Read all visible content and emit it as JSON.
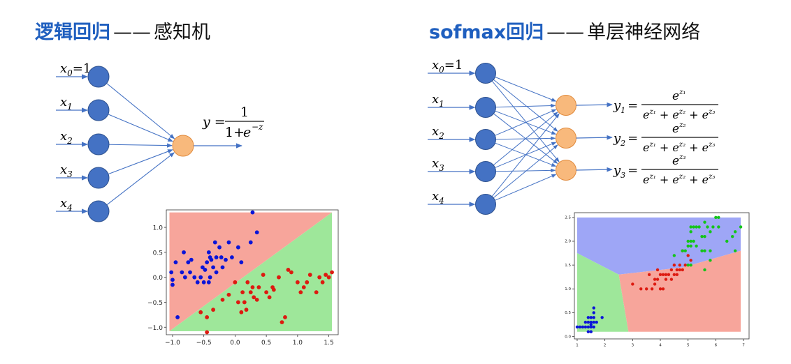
{
  "titles": {
    "left": {
      "highlight": "逻辑回归",
      "dash": "——",
      "rest": "感知机"
    },
    "right": {
      "highlight": "sofmax回归",
      "dash": "——",
      "rest": "单层神经网络"
    }
  },
  "left_network": {
    "inputs": [
      {
        "base": "x",
        "sub": "0",
        "suffix": "=1"
      },
      {
        "base": "x",
        "sub": "1",
        "suffix": ""
      },
      {
        "base": "x",
        "sub": "2",
        "suffix": ""
      },
      {
        "base": "x",
        "sub": "3",
        "suffix": ""
      },
      {
        "base": "x",
        "sub": "4",
        "suffix": ""
      }
    ],
    "formula": {
      "lhs": "y =",
      "num": "1",
      "den_a": "1+",
      "den_b": "e",
      "den_exp": "−z"
    }
  },
  "right_network": {
    "inputs": [
      {
        "base": "x",
        "sub": "0",
        "suffix": "=1"
      },
      {
        "base": "x",
        "sub": "1",
        "suffix": ""
      },
      {
        "base": "x",
        "sub": "2",
        "suffix": ""
      },
      {
        "base": "x",
        "sub": "3",
        "suffix": ""
      },
      {
        "base": "x",
        "sub": "4",
        "suffix": ""
      }
    ],
    "outputs": [
      {
        "y": "y",
        "ysub": "1",
        "num_exp": "z₁",
        "den": "e^{z₁} + e^{z₂} + e^{z₃}"
      },
      {
        "y": "y",
        "ysub": "2",
        "num_exp": "z₂",
        "den": "e^{z₁} + e^{z₂} + e^{z₃}"
      },
      {
        "y": "y",
        "ysub": "3",
        "num_exp": "z₃",
        "den": "e^{z₁} + e^{z₂} + e^{z₃}"
      }
    ]
  },
  "colors": {
    "node_blue": "#4472c4",
    "node_orange": "#f8b97c",
    "edge": "#4472c4",
    "region_red": "#f7a59b",
    "region_green": "#9ee79a",
    "region_blue": "#9ea6f6",
    "pt_blue": "#0a14d8",
    "pt_red": "#dd1a10",
    "pt_green": "#14c41a"
  },
  "chart_data": [
    {
      "type": "scatter",
      "xlim": [
        -1.1,
        1.65
      ],
      "ylim": [
        -1.15,
        1.35
      ],
      "xticks": [
        "−1.0",
        "−0.5",
        "0.0",
        "0.5",
        "1.0",
        "1.5"
      ],
      "xtick_values": [
        -1.0,
        -0.5,
        0.0,
        0.5,
        1.0,
        1.5
      ],
      "yticks": [
        "1.0",
        "0.5",
        "0.0",
        "−0.5",
        "−1.0"
      ],
      "ytick_values": [
        1.0,
        0.5,
        0.0,
        -0.5,
        -1.0
      ],
      "regions": [
        {
          "color": "red",
          "polygon": [
            [
              -1.05,
              -1.08
            ],
            [
              -1.05,
              1.3
            ],
            [
              1.55,
              1.3
            ]
          ]
        },
        {
          "color": "green",
          "polygon": [
            [
              -1.05,
              -1.08
            ],
            [
              1.55,
              1.3
            ],
            [
              1.55,
              -1.08
            ]
          ]
        }
      ],
      "series": [
        {
          "color": "blue",
          "points": [
            [
              -1.02,
              0.1
            ],
            [
              -1.0,
              -0.05
            ],
            [
              -1.0,
              -0.15
            ],
            [
              -0.95,
              0.3
            ],
            [
              -0.92,
              -0.8
            ],
            [
              -0.85,
              0.1
            ],
            [
              -0.82,
              0.5
            ],
            [
              -0.8,
              0.0
            ],
            [
              -0.75,
              0.3
            ],
            [
              -0.72,
              0.1
            ],
            [
              -0.7,
              0.35
            ],
            [
              -0.65,
              0.0
            ],
            [
              -0.6,
              -0.1
            ],
            [
              -0.55,
              0.0
            ],
            [
              -0.52,
              0.2
            ],
            [
              -0.5,
              -0.1
            ],
            [
              -0.48,
              0.15
            ],
            [
              -0.45,
              0.3
            ],
            [
              -0.42,
              -0.1
            ],
            [
              -0.4,
              0.0
            ],
            [
              -0.42,
              0.5
            ],
            [
              -0.4,
              0.4
            ],
            [
              -0.38,
              0.35
            ],
            [
              -0.35,
              0.2
            ],
            [
              -0.32,
              0.7
            ],
            [
              -0.3,
              0.4
            ],
            [
              -0.3,
              0.1
            ],
            [
              -0.25,
              0.6
            ],
            [
              -0.22,
              0.4
            ],
            [
              -0.2,
              0.2
            ],
            [
              -0.15,
              0.35
            ],
            [
              -0.1,
              0.7
            ],
            [
              -0.05,
              0.4
            ],
            [
              0.05,
              0.6
            ],
            [
              0.1,
              0.3
            ],
            [
              0.25,
              0.7
            ],
            [
              0.28,
              1.3
            ],
            [
              0.35,
              0.9
            ]
          ]
        },
        {
          "color": "red",
          "points": [
            [
              -0.55,
              -0.7
            ],
            [
              -0.45,
              -0.8
            ],
            [
              -0.45,
              -1.1
            ],
            [
              -0.35,
              -0.65
            ],
            [
              -0.2,
              -0.45
            ],
            [
              -0.1,
              -0.35
            ],
            [
              0.0,
              -0.1
            ],
            [
              0.05,
              -0.5
            ],
            [
              0.1,
              -0.7
            ],
            [
              0.12,
              -0.3
            ],
            [
              0.15,
              -0.5
            ],
            [
              0.18,
              -0.65
            ],
            [
              0.2,
              -0.1
            ],
            [
              0.25,
              -0.3
            ],
            [
              0.28,
              -0.2
            ],
            [
              0.3,
              -0.4
            ],
            [
              0.35,
              -0.45
            ],
            [
              0.38,
              -0.2
            ],
            [
              0.45,
              0.05
            ],
            [
              0.5,
              -0.3
            ],
            [
              0.55,
              -0.4
            ],
            [
              0.6,
              -0.2
            ],
            [
              0.62,
              -0.25
            ],
            [
              0.7,
              0.0
            ],
            [
              0.75,
              -0.9
            ],
            [
              0.8,
              -0.8
            ],
            [
              0.85,
              0.15
            ],
            [
              0.9,
              0.1
            ],
            [
              1.0,
              -0.1
            ],
            [
              1.05,
              -0.3
            ],
            [
              1.1,
              -0.2
            ],
            [
              1.15,
              -0.1
            ],
            [
              1.2,
              0.05
            ],
            [
              1.3,
              -0.3
            ],
            [
              1.35,
              0.0
            ],
            [
              1.4,
              -0.1
            ],
            [
              1.45,
              0.05
            ],
            [
              1.5,
              0.0
            ],
            [
              1.55,
              0.1
            ]
          ]
        }
      ]
    },
    {
      "type": "scatter",
      "xlim": [
        0.9,
        7.2
      ],
      "ylim": [
        -0.05,
        2.6
      ],
      "xticks": [
        "1",
        "2",
        "3",
        "4",
        "5",
        "6",
        "7"
      ],
      "xtick_values": [
        1,
        2,
        3,
        4,
        5,
        6,
        7
      ],
      "yticks": [
        "2.5",
        "2.0",
        "1.5",
        "1.0",
        "0.5",
        "0.0"
      ],
      "ytick_values": [
        2.5,
        2.0,
        1.5,
        1.0,
        0.5,
        0.0
      ],
      "regions": [
        {
          "color": "blue",
          "polygon": [
            [
              1.0,
              1.75
            ],
            [
              1.0,
              2.5
            ],
            [
              6.9,
              2.5
            ],
            [
              6.9,
              1.8
            ],
            [
              4.8,
              1.45
            ],
            [
              2.5,
              1.3
            ]
          ]
        },
        {
          "color": "green",
          "polygon": [
            [
              1.0,
              0.1
            ],
            [
              1.0,
              1.75
            ],
            [
              2.5,
              1.3
            ],
            [
              2.85,
              0.1
            ]
          ]
        },
        {
          "color": "red",
          "polygon": [
            [
              2.85,
              0.1
            ],
            [
              2.5,
              1.3
            ],
            [
              4.8,
              1.45
            ],
            [
              6.9,
              1.8
            ],
            [
              6.9,
              0.1
            ]
          ]
        }
      ],
      "series": [
        {
          "color": "blue",
          "points": [
            [
              1.0,
              0.2
            ],
            [
              1.1,
              0.2
            ],
            [
              1.2,
              0.2
            ],
            [
              1.3,
              0.2
            ],
            [
              1.4,
              0.2
            ],
            [
              1.5,
              0.2
            ],
            [
              1.6,
              0.2
            ],
            [
              1.4,
              0.1
            ],
            [
              1.5,
              0.1
            ],
            [
              1.3,
              0.3
            ],
            [
              1.4,
              0.3
            ],
            [
              1.5,
              0.3
            ],
            [
              1.6,
              0.3
            ],
            [
              1.7,
              0.3
            ],
            [
              1.4,
              0.4
            ],
            [
              1.5,
              0.4
            ],
            [
              1.6,
              0.4
            ],
            [
              1.9,
              0.4
            ],
            [
              1.6,
              0.5
            ],
            [
              1.6,
              0.6
            ],
            [
              1.5,
              0.25
            ]
          ]
        },
        {
          "color": "red",
          "points": [
            [
              3.0,
              1.1
            ],
            [
              3.3,
              1.0
            ],
            [
              3.5,
              1.0
            ],
            [
              3.6,
              1.3
            ],
            [
              3.7,
              1.0
            ],
            [
              3.8,
              1.1
            ],
            [
              3.9,
              1.2
            ],
            [
              3.9,
              1.4
            ],
            [
              4.0,
              1.0
            ],
            [
              4.0,
              1.3
            ],
            [
              4.1,
              1.3
            ],
            [
              4.2,
              1.3
            ],
            [
              4.3,
              1.3
            ],
            [
              4.4,
              1.4
            ],
            [
              4.5,
              1.5
            ],
            [
              4.5,
              1.3
            ],
            [
              4.6,
              1.4
            ],
            [
              4.7,
              1.4
            ],
            [
              4.8,
              1.4
            ],
            [
              4.9,
              1.5
            ],
            [
              5.0,
              1.7
            ],
            [
              5.1,
              1.6
            ],
            [
              4.1,
              1.0
            ],
            [
              4.2,
              1.2
            ],
            [
              4.4,
              1.2
            ],
            [
              4.6,
              1.3
            ],
            [
              4.7,
              1.5
            ],
            [
              4.8,
              1.8
            ],
            [
              3.8,
              1.2
            ]
          ]
        },
        {
          "color": "green",
          "points": [
            [
              4.5,
              1.7
            ],
            [
              4.8,
              1.8
            ],
            [
              4.9,
              1.8
            ],
            [
              5.0,
              1.9
            ],
            [
              5.1,
              1.9
            ],
            [
              5.0,
              2.0
            ],
            [
              5.1,
              2.0
            ],
            [
              5.2,
              2.0
            ],
            [
              5.1,
              2.2
            ],
            [
              5.1,
              2.3
            ],
            [
              5.2,
              2.3
            ],
            [
              5.3,
              2.3
            ],
            [
              5.4,
              2.3
            ],
            [
              5.5,
              2.1
            ],
            [
              5.6,
              2.1
            ],
            [
              5.6,
              2.4
            ],
            [
              5.7,
              2.3
            ],
            [
              5.8,
              2.2
            ],
            [
              5.9,
              2.3
            ],
            [
              6.0,
              2.5
            ],
            [
              6.1,
              2.3
            ],
            [
              6.1,
              2.5
            ],
            [
              5.8,
              1.8
            ],
            [
              5.6,
              1.8
            ],
            [
              5.3,
              1.9
            ],
            [
              5.5,
              1.8
            ],
            [
              6.4,
              2.0
            ],
            [
              6.6,
              2.1
            ],
            [
              6.7,
              2.2
            ],
            [
              6.9,
              2.3
            ],
            [
              6.7,
              1.8
            ],
            [
              5.8,
              1.6
            ],
            [
              5.6,
              1.4
            ],
            [
              5.0,
              1.5
            ],
            [
              5.1,
              1.5
            ]
          ]
        }
      ]
    }
  ]
}
